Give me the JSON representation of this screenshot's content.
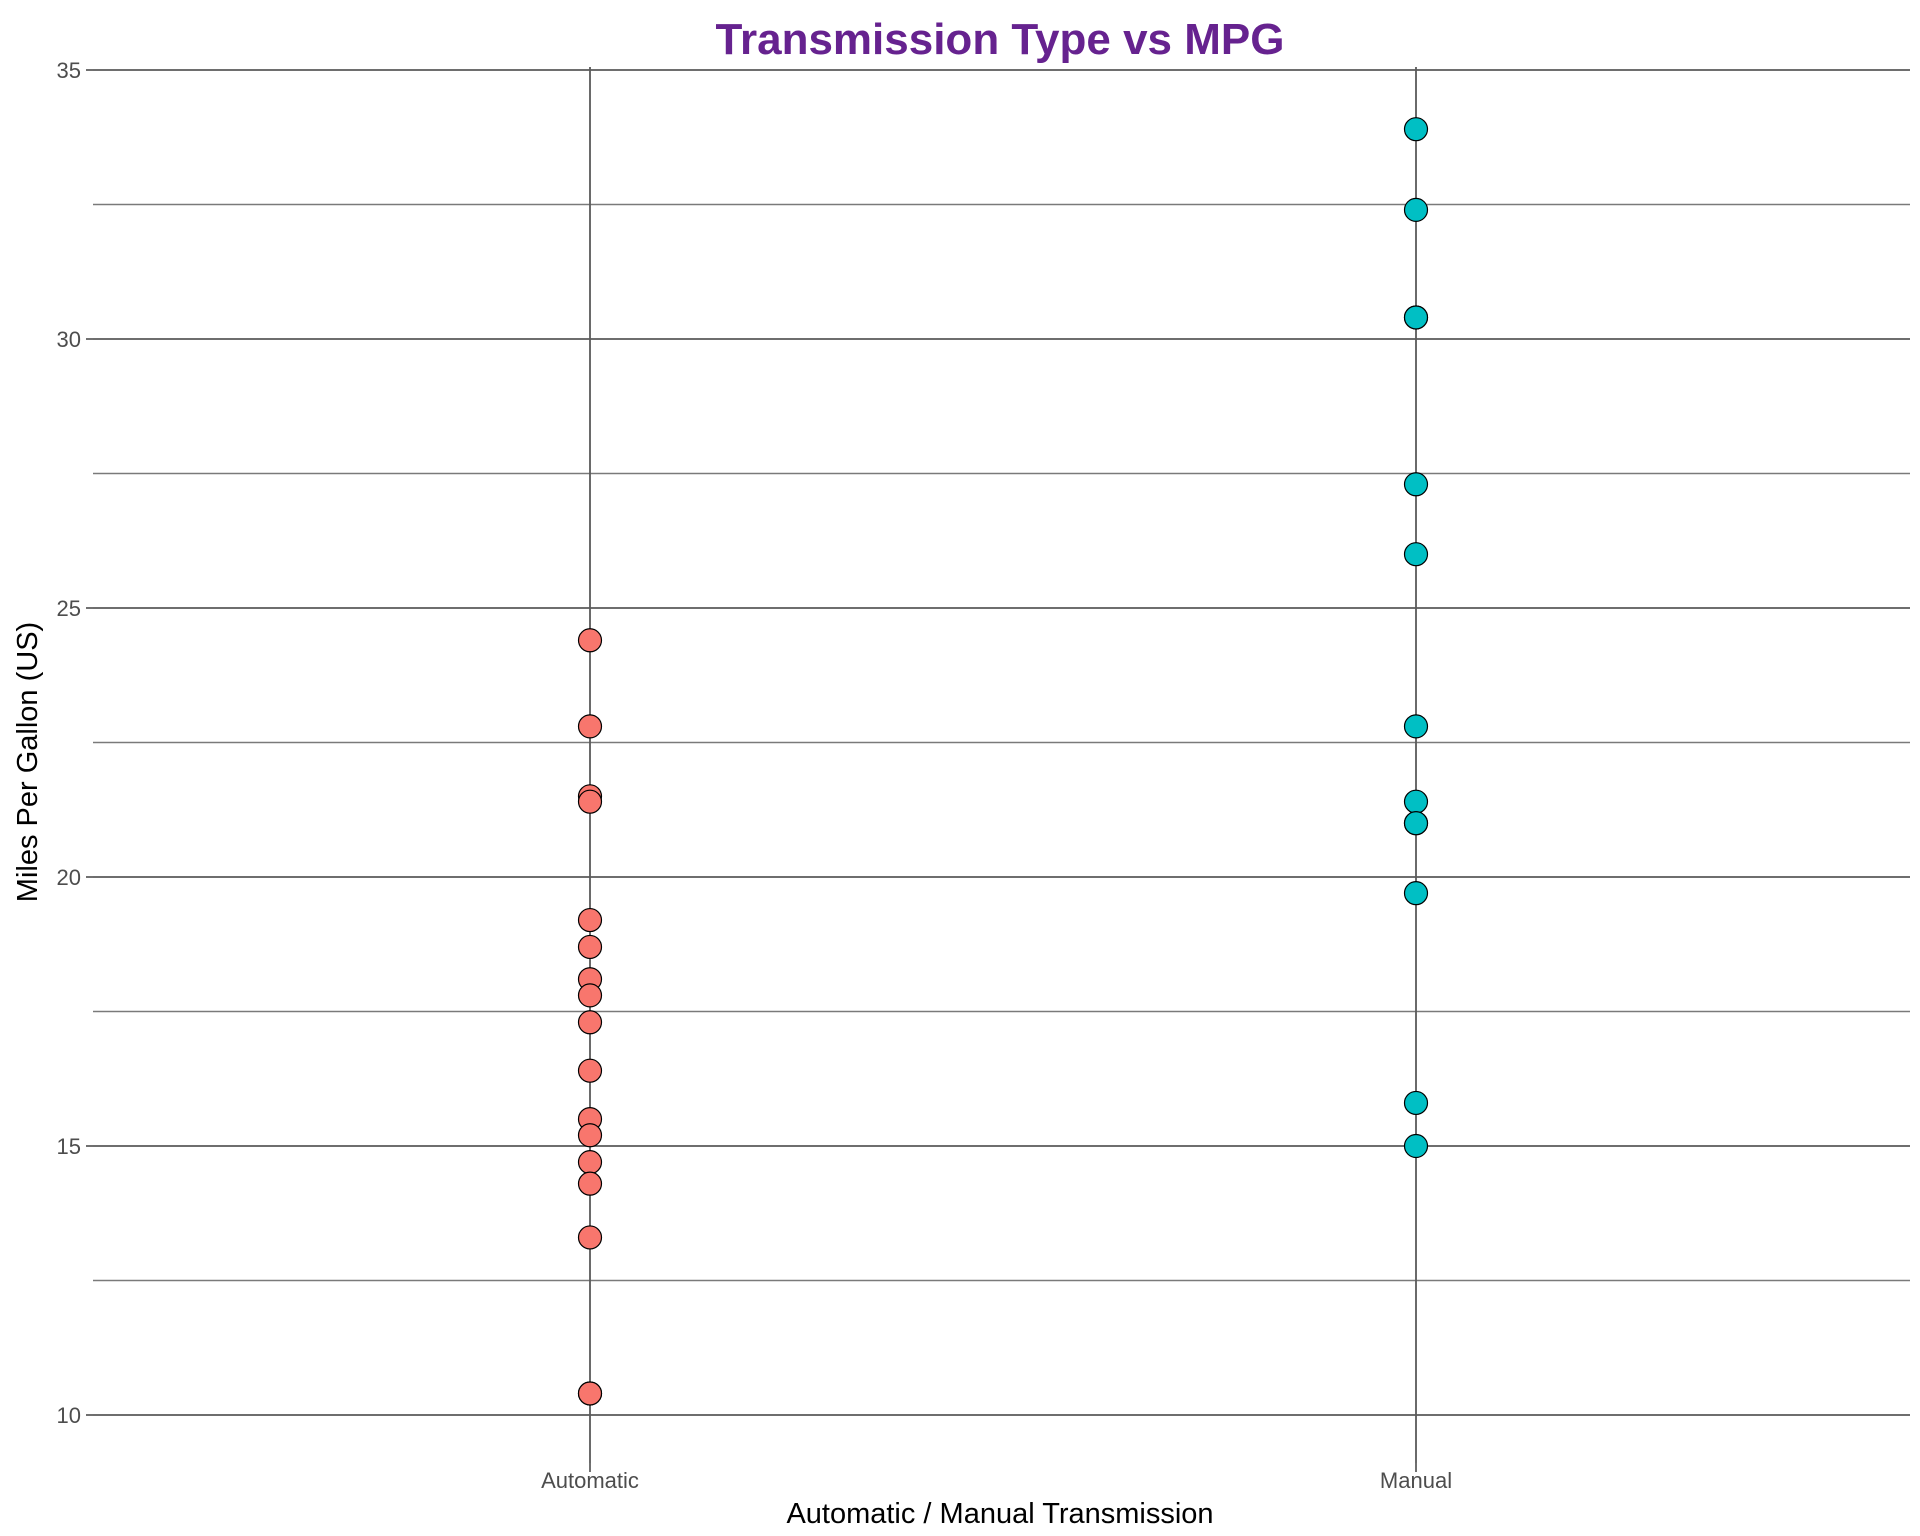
{
  "chart_data": {
    "type": "scatter",
    "title": "Transmission Type vs MPG",
    "xlabel": "Automatic / Manual Transmission",
    "ylabel": "Miles Per Gallon (US)",
    "categories": [
      "Automatic",
      "Manual"
    ],
    "ylim": [
      9.2,
      35.3
    ],
    "yticks": [
      10,
      15,
      20,
      25,
      30,
      35
    ],
    "yminor": [
      12.5,
      17.5,
      22.5,
      27.5,
      32.5
    ],
    "grid": true,
    "legend": "none",
    "series": [
      {
        "category": "Automatic",
        "color": "#F8766D",
        "values": [
          24.4,
          22.8,
          21.5,
          21.4,
          19.2,
          18.7,
          18.1,
          17.8,
          17.3,
          16.4,
          15.5,
          15.2,
          14.7,
          14.3,
          13.3,
          10.4,
          10.4
        ]
      },
      {
        "category": "Manual",
        "color": "#00BFC4",
        "values": [
          33.9,
          32.4,
          30.4,
          30.4,
          27.3,
          26.0,
          22.8,
          21.4,
          21.0,
          21.0,
          19.7,
          15.8,
          15.0
        ]
      }
    ],
    "colors": {
      "title": "#66228F"
    }
  }
}
